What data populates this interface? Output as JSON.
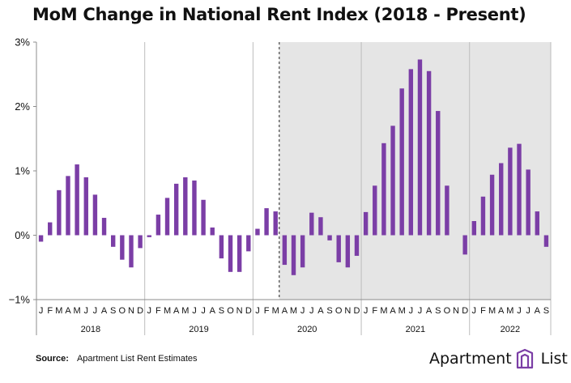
{
  "title": "MoM Change in National Rent Index (2018 - Present)",
  "source_label": "Source:",
  "source_text": "Apartment List Rent Estimates",
  "brand": {
    "word1": "Apartment",
    "word2": "List",
    "logo_icon": "building-logo-icon"
  },
  "colors": {
    "bar": "#7b3ea6",
    "shade": "#e5e5e5",
    "axis": "#8c8c8c",
    "grid": "#bdbdbd"
  },
  "chart_data": {
    "type": "bar",
    "title": "MoM Change in National Rent Index (2018 - Present)",
    "xlabel": "",
    "ylabel": "",
    "ylim": [
      -1,
      3
    ],
    "yticks": [
      "−1%",
      "0%",
      "1%",
      "2%",
      "3%"
    ],
    "ytick_values": [
      -1,
      0,
      1,
      2,
      3
    ],
    "grid": false,
    "shaded_from": "2020-04",
    "dashed_marker_at": "2020-04",
    "years": [
      {
        "label": "2018",
        "months": 12
      },
      {
        "label": "2019",
        "months": 12
      },
      {
        "label": "2020",
        "months": 12
      },
      {
        "label": "2021",
        "months": 12
      },
      {
        "label": "2022",
        "months": 9
      }
    ],
    "month_letters": [
      "J",
      "F",
      "M",
      "A",
      "M",
      "J",
      "J",
      "A",
      "S",
      "O",
      "N",
      "D"
    ],
    "series": [
      {
        "values": [
          -0.1,
          0.2,
          0.7,
          0.92,
          1.1,
          0.9,
          0.63,
          0.27,
          -0.18,
          -0.38,
          -0.5,
          -0.2,
          -0.03,
          0.32,
          0.58,
          0.8,
          0.9,
          0.85,
          0.55,
          0.12,
          -0.36,
          -0.57,
          -0.57,
          -0.25,
          0.1,
          0.42,
          0.37,
          -0.46,
          -0.62,
          -0.5,
          0.35,
          0.28,
          -0.08,
          -0.42,
          -0.5,
          -0.32,
          0.36,
          0.77,
          1.43,
          1.7,
          2.28,
          2.58,
          2.73,
          2.55,
          1.93,
          0.77,
          0.0,
          -0.3,
          0.22,
          0.6,
          0.94,
          1.12,
          1.36,
          1.42,
          1.02,
          0.37,
          -0.18
        ]
      }
    ]
  }
}
